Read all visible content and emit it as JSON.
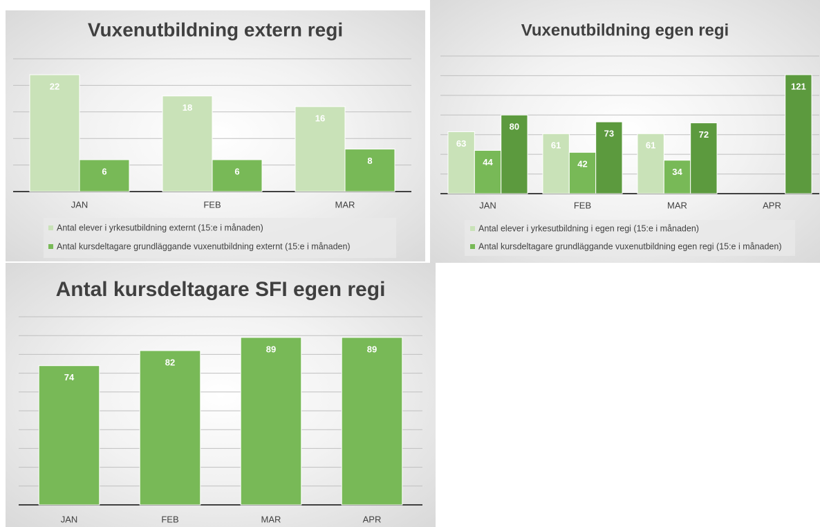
{
  "chart_data": [
    {
      "type": "bar",
      "title": "Vuxenutbildning extern regi",
      "categories": [
        "JAN",
        "FEB",
        "MAR"
      ],
      "series": [
        {
          "name": "Antal elever i yrkesutbildning externt  (15:e i månaden)",
          "color": "#c9e2b8",
          "values": [
            22,
            18,
            16
          ]
        },
        {
          "name": "Antal kursdeltagare grundläggande vuxenutbildning externt (15:e i månaden)",
          "color": "#78b957",
          "values": [
            6,
            6,
            8
          ]
        }
      ],
      "ylim": [
        0,
        25
      ],
      "yticks": [
        0,
        5,
        10,
        15,
        20,
        25
      ],
      "grid": true
    },
    {
      "type": "bar",
      "title": "Vuxenutbildning egen regi",
      "categories": [
        "JAN",
        "FEB",
        "MAR",
        "APR"
      ],
      "series": [
        {
          "name": "Antal elever i yrkesutbildning i egen regi (15:e i månaden)",
          "color": "#c9e2b8",
          "values": [
            63,
            61,
            61,
            null
          ]
        },
        {
          "name": "Antal kursdeltagare grundläggande vuxenutbildning egen regi (15:e i månaden)",
          "color": "#78b957",
          "values": [
            44,
            42,
            34,
            null
          ]
        },
        {
          "color": "#5c9a3e",
          "values": [
            80,
            73,
            72,
            121
          ]
        }
      ],
      "ylim": [
        0,
        140
      ],
      "yticks": [
        0,
        20,
        40,
        60,
        80,
        100,
        120,
        140
      ],
      "grid": true
    },
    {
      "type": "bar",
      "title": "Antal kursdeltagare SFI egen regi",
      "categories": [
        "JAN",
        "FEB",
        "MAR",
        "APR"
      ],
      "series": [
        {
          "color": "#78b957",
          "values": [
            74,
            82,
            89,
            89
          ]
        }
      ],
      "ylim": [
        0,
        100
      ],
      "yticks": [
        0,
        10,
        20,
        30,
        40,
        50,
        60,
        70,
        80,
        90,
        100
      ],
      "grid": true
    }
  ]
}
